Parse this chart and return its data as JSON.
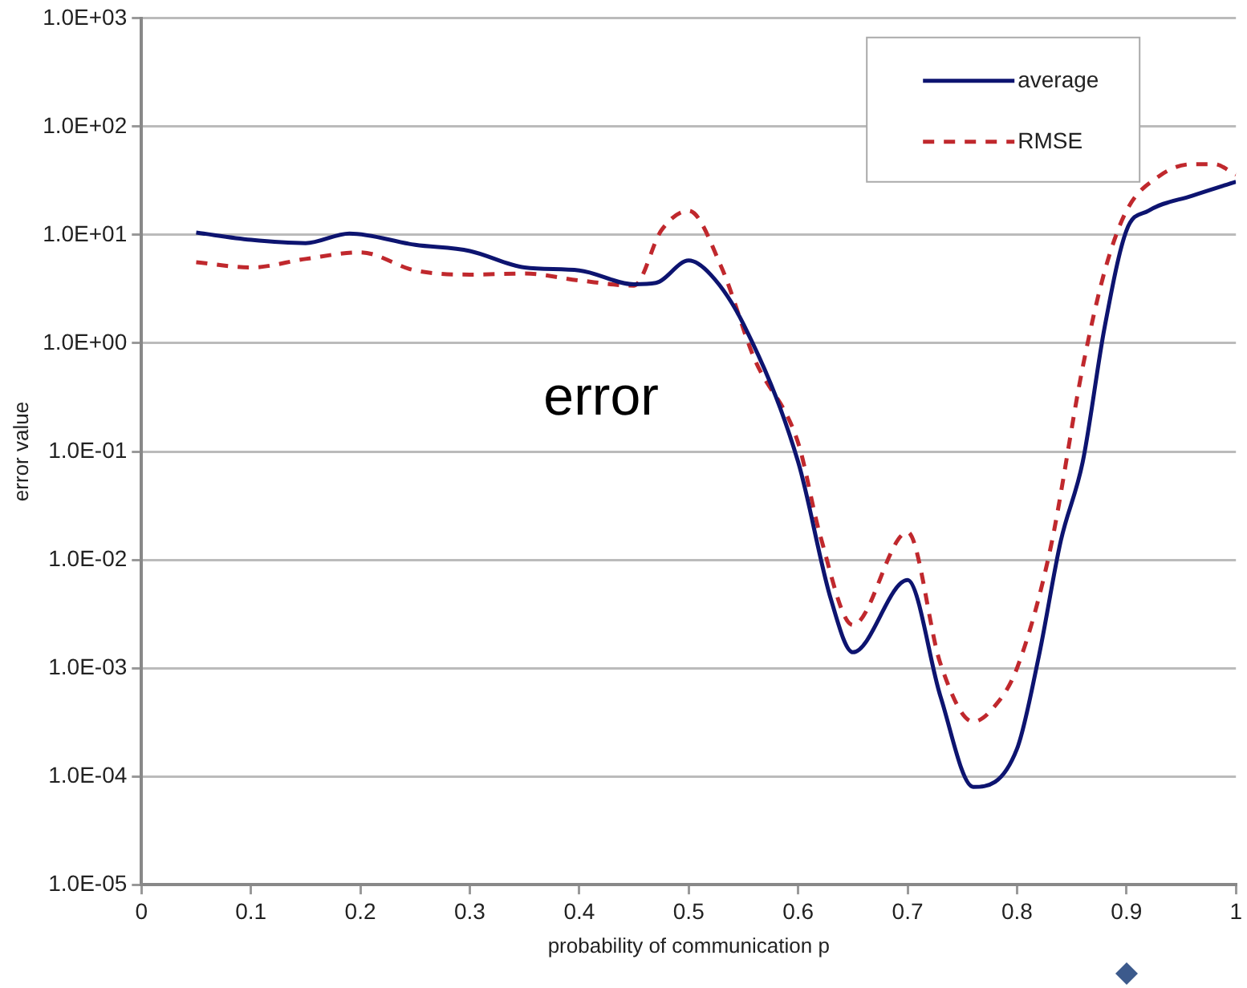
{
  "chart_data": {
    "type": "line",
    "xlabel": "probability of communication p",
    "ylabel": "error value",
    "log": "y",
    "grid": "y",
    "legend": "top right",
    "marker": "none",
    "xlim": [
      0,
      1
    ],
    "xticks": [
      0,
      0.1,
      0.2,
      0.3,
      0.4,
      0.5,
      0.6,
      0.7,
      0.8,
      0.9,
      1
    ],
    "ylim": [
      1e-05,
      1000
    ],
    "yticks": [
      {
        "value": 1e-05,
        "label": "1.0E-05"
      },
      {
        "value": 0.0001,
        "label": "1.0E-04"
      },
      {
        "value": 0.001,
        "label": "1.0E-03"
      },
      {
        "value": 0.01,
        "label": "1.0E-02"
      },
      {
        "value": 0.1,
        "label": "1.0E-01"
      },
      {
        "value": 1,
        "label": "1.0E+00"
      },
      {
        "value": 10,
        "label": "1.0E+01"
      },
      {
        "value": 100,
        "label": "1.0E+02"
      },
      {
        "value": 1000,
        "label": "1.0E+03"
      }
    ],
    "annotations": [
      "error"
    ],
    "series": [
      {
        "name": "average",
        "color": "#0d1470",
        "line_style": "solid",
        "x": [
          0.05,
          0.1,
          0.15,
          0.19,
          0.25,
          0.3,
          0.35,
          0.4,
          0.45,
          0.47,
          0.5,
          0.52,
          0.55,
          0.6,
          0.63,
          0.65,
          0.7,
          0.73,
          0.76,
          0.8,
          0.82,
          0.84,
          0.86,
          0.88,
          0.9,
          0.92,
          0.96,
          1.0
        ],
        "values": [
          10.5,
          9,
          8.4,
          10.3,
          8.1,
          7.1,
          5,
          4.7,
          3.5,
          3.6,
          5.8,
          4.3,
          1.5,
          0.08,
          0.0043,
          0.0014,
          0.0065,
          0.00055,
          8e-05,
          0.00018,
          0.0013,
          0.015,
          0.08,
          1.4,
          11,
          16.7,
          23,
          31
        ]
      },
      {
        "name": "RMSE",
        "color": "#c0282d",
        "line_style": "dashed",
        "x": [
          0.05,
          0.1,
          0.15,
          0.2,
          0.25,
          0.3,
          0.35,
          0.4,
          0.45,
          0.475,
          0.5,
          0.53,
          0.56,
          0.6,
          0.62,
          0.65,
          0.7,
          0.73,
          0.76,
          0.78,
          0.8,
          0.83,
          0.86,
          0.88,
          0.9,
          0.93,
          0.96,
          0.98,
          1.0
        ],
        "values": [
          5.6,
          5,
          6,
          6.9,
          4.7,
          4.3,
          4.4,
          3.8,
          3.4,
          11,
          16.7,
          5,
          0.72,
          0.12,
          0.017,
          0.0025,
          0.018,
          0.0011,
          0.00032,
          0.00045,
          0.001,
          0.012,
          0.6,
          4.6,
          16.7,
          35,
          45,
          45,
          36
        ]
      }
    ]
  }
}
